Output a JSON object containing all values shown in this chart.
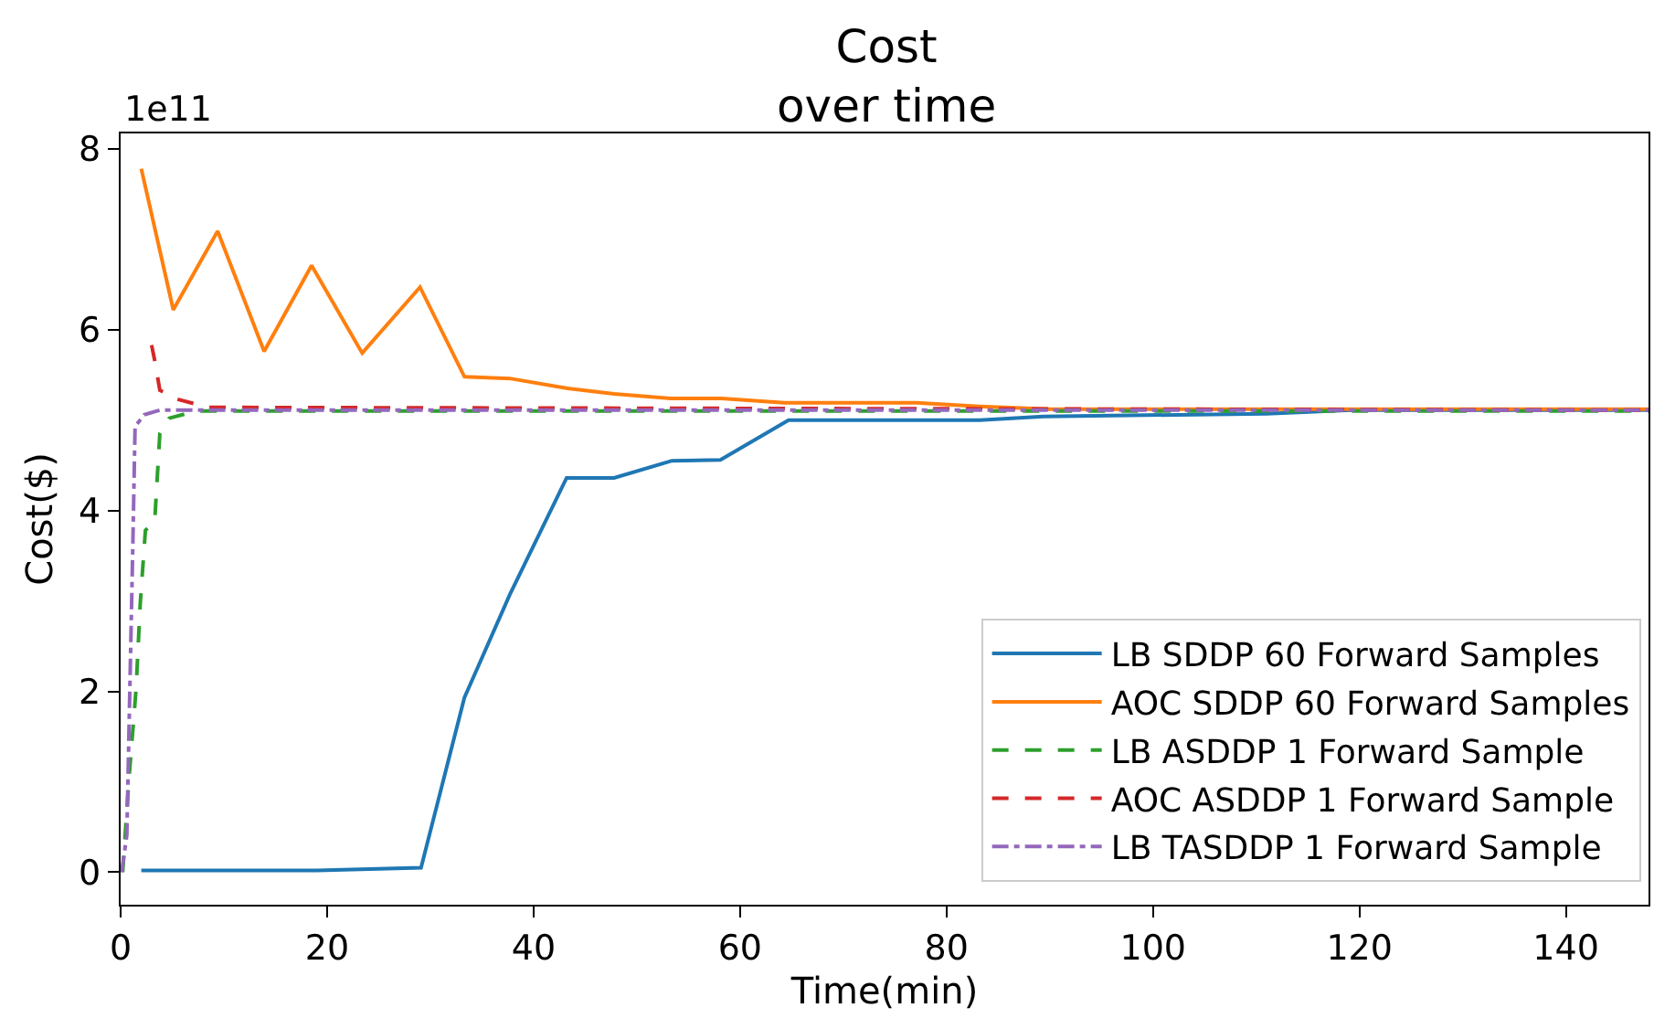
{
  "chart_data": {
    "type": "line",
    "title": "Cost\nover time",
    "xlabel": "Time(min)",
    "ylabel": "Cost($)",
    "annotations": [
      "1e11"
    ],
    "xlim": [
      0,
      148
    ],
    "xticks": [
      0,
      20,
      40,
      60,
      80,
      100,
      120,
      140
    ],
    "ylim": [
      -0.36,
      8.17
    ],
    "yticks": [
      0,
      2,
      4,
      6,
      8
    ],
    "legend": "bottom right",
    "series": [
      {
        "name": "LB SDDP 60 Forward Samples",
        "color": "#1f77b4",
        "line_style": "solid",
        "x": [
          2,
          19,
          29.1,
          33.3,
          37.7,
          43.2,
          47.8,
          53.4,
          58.1,
          64.7,
          83.2,
          89.4,
          111,
          119.2,
          148
        ],
        "values": [
          0.02,
          0.02,
          0.05,
          1.93,
          3.07,
          4.36,
          4.36,
          4.55,
          4.56,
          5.0,
          5.0,
          5.04,
          5.07,
          5.11,
          5.11
        ]
      },
      {
        "name": "AOC SDDP 60 Forward Samples",
        "color": "#ff7f0e",
        "line_style": "solid",
        "x": [
          2,
          5.1,
          9.4,
          13.9,
          18.5,
          23.4,
          29,
          33.3,
          37.7,
          43.3,
          47.8,
          53.3,
          58.2,
          64.3,
          77.2,
          83.2,
          90,
          148
        ],
        "values": [
          7.78,
          6.22,
          7.09,
          5.76,
          6.71,
          5.74,
          6.47,
          5.48,
          5.46,
          5.35,
          5.29,
          5.24,
          5.24,
          5.19,
          5.19,
          5.15,
          5.12,
          5.12
        ]
      },
      {
        "name": "LB ASDDP 1 Forward Sample",
        "color": "#2ca02c",
        "line_style": "dashed",
        "x": [
          0.2,
          0.8,
          1.5,
          1.9,
          2.4,
          3.3,
          3.8,
          4.7,
          7.3,
          148
        ],
        "values": [
          0,
          1.02,
          2.03,
          2.97,
          3.78,
          3.88,
          4.85,
          5.02,
          5.1,
          5.1
        ]
      },
      {
        "name": "AOC ASDDP 1 Forward Sample",
        "color": "#d62728",
        "line_style": "dashed",
        "x": [
          3.0,
          3.3,
          3.8,
          5.5,
          8.5,
          148
        ],
        "values": [
          5.83,
          5.66,
          5.33,
          5.23,
          5.14,
          5.11
        ]
      },
      {
        "name": "LB TASDDP 1 Forward Sample",
        "color": "#9467bd",
        "line_style": "dashdot",
        "x": [
          0.1,
          0.6,
          1.2,
          1.4,
          2.3,
          3.8,
          148
        ],
        "values": [
          0,
          0.41,
          3.72,
          4.93,
          5.06,
          5.11,
          5.11
        ]
      }
    ]
  }
}
